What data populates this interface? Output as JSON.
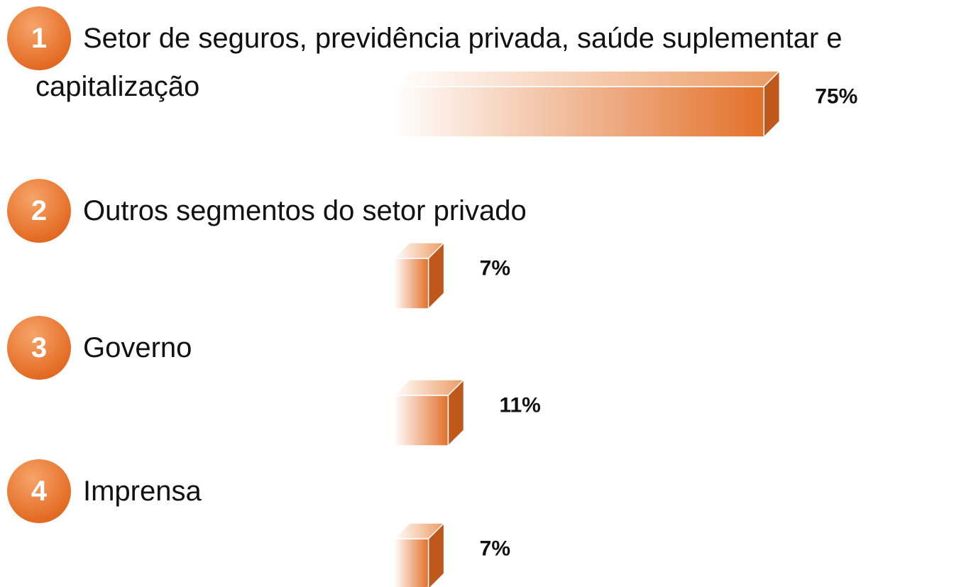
{
  "chart_data": {
    "type": "bar",
    "ranks": [
      "1",
      "2",
      "3",
      "4"
    ],
    "categories": [
      "Setor de seguros, previdência privada, saúde suplementar e capitalização",
      "Outros segmentos do setor privado",
      "Governo",
      "Imprensa"
    ],
    "values": [
      75,
      7,
      11,
      7
    ],
    "value_labels": [
      "75%",
      "7%",
      "11%",
      "7%"
    ],
    "color": "#e2702a"
  }
}
